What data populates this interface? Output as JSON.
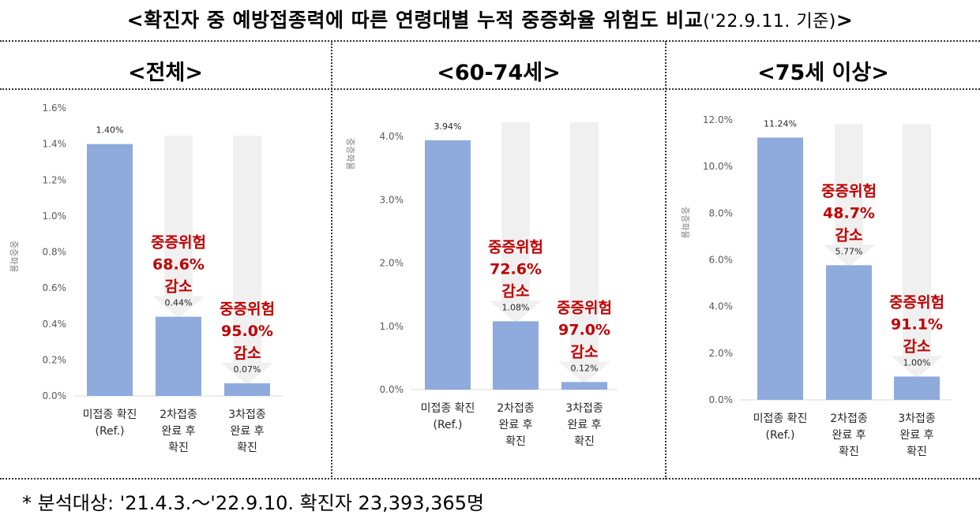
{
  "title": {
    "main": "<확진자 중 예방접종력에 따른 연령대별 누적 중증화율 위험도 비교",
    "date": "('22.9.11. 기준)",
    "end": ">"
  },
  "footnote": "* 분석대상: '21.4.3.～'22.9.10. 확진자 23,393,365명",
  "colors": {
    "bar": "#8faadc",
    "arrow": "#f0f0f0",
    "annotation": "#c00000",
    "axis_text": "#595959"
  },
  "chart_data": [
    {
      "type": "bar",
      "title": "<전체>",
      "ylabel": "중증화율",
      "categories": [
        [
          "미접종 확진",
          "(Ref.)"
        ],
        [
          "2차접종",
          "완료 후",
          "확진"
        ],
        [
          "3차접종",
          "완료 후",
          "확진"
        ]
      ],
      "values": [
        1.4,
        0.44,
        0.07
      ],
      "value_labels": [
        "1.40%",
        "0.44%",
        "0.07%"
      ],
      "ylim": [
        0,
        1.6
      ],
      "yticks": [
        0,
        0.2,
        0.4,
        0.6,
        0.8,
        1.0,
        1.2,
        1.4,
        1.6
      ],
      "ytick_labels": [
        "0.0%",
        "0.2%",
        "0.4%",
        "0.6%",
        "0.8%",
        "1.0%",
        "1.2%",
        "1.4%",
        "1.6%"
      ],
      "annotations": [
        {
          "bar": 1,
          "lines": [
            "중증위험",
            "68.6%",
            "감소"
          ]
        },
        {
          "bar": 2,
          "lines": [
            "중증위험",
            "95.0%",
            "감소"
          ]
        }
      ]
    },
    {
      "type": "bar",
      "title": "<60-74세>",
      "ylabel": "중증화율",
      "categories": [
        [
          "미접종 확진",
          "(Ref.)"
        ],
        [
          "2차접종",
          "완료 후",
          "확진"
        ],
        [
          "3차접종",
          "완료 후",
          "확진"
        ]
      ],
      "values": [
        3.94,
        1.08,
        0.12
      ],
      "value_labels": [
        "3.94%",
        "1.08%",
        "0.12%"
      ],
      "ylim": [
        0,
        4.0
      ],
      "yticks": [
        0,
        1.0,
        2.0,
        3.0,
        4.0
      ],
      "ytick_labels": [
        "0.0%",
        "1.0%",
        "2.0%",
        "3.0%",
        "4.0%"
      ],
      "annotations": [
        {
          "bar": 1,
          "lines": [
            "중증위험",
            "72.6%",
            "감소"
          ]
        },
        {
          "bar": 2,
          "lines": [
            "중증위험",
            "97.0%",
            "감소"
          ]
        }
      ]
    },
    {
      "type": "bar",
      "title": "<75세 이상>",
      "ylabel": "중증화율",
      "categories": [
        [
          "미접종 확진",
          "(Ref.)"
        ],
        [
          "2차접종",
          "완료 후",
          "확진"
        ],
        [
          "3차접종",
          "완료 후",
          "확진"
        ]
      ],
      "values": [
        11.24,
        5.77,
        1.0
      ],
      "value_labels": [
        "11.24%",
        "5.77%",
        "1.00%"
      ],
      "ylim": [
        0,
        12.0
      ],
      "yticks": [
        0,
        2.0,
        4.0,
        6.0,
        8.0,
        10.0,
        12.0
      ],
      "ytick_labels": [
        "0.0%",
        "2.0%",
        "4.0%",
        "6.0%",
        "8.0%",
        "10.0%",
        "12.0%"
      ],
      "annotations": [
        {
          "bar": 1,
          "lines": [
            "중증위험",
            "48.7%",
            "감소"
          ]
        },
        {
          "bar": 2,
          "lines": [
            "중증위험",
            "91.1%",
            "감소"
          ]
        }
      ]
    }
  ]
}
